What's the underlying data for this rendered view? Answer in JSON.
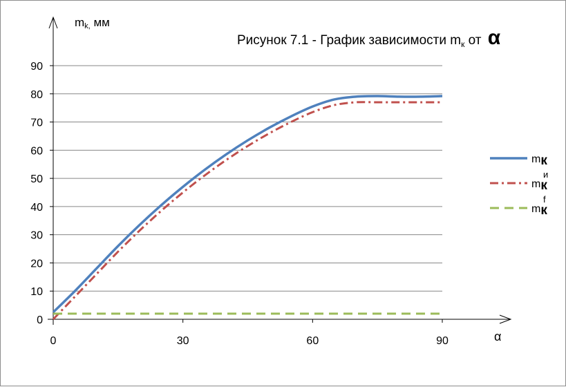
{
  "chart_data": {
    "type": "line",
    "title_prefix": "Рисунок 7.1 - График зависимости m",
    "title_sub": "к",
    "title_mid": " от ",
    "title_symbol": "α",
    "ylabel_main": "m",
    "ylabel_sub": "k,",
    "ylabel_unit": " мм",
    "xlabel": "α",
    "xlim": [
      0,
      90
    ],
    "ylim": [
      0,
      90
    ],
    "xticks": [
      0,
      30,
      60,
      90
    ],
    "yticks": [
      0,
      10,
      20,
      30,
      40,
      50,
      60,
      70,
      80,
      90
    ],
    "grid": true,
    "legend_position": "right",
    "series": [
      {
        "name_main": "m",
        "name_sub": "к",
        "name_sup": "",
        "color": "#4f81bd",
        "style": "solid",
        "x": [
          0,
          5,
          10,
          15,
          20,
          25,
          30,
          35,
          40,
          45,
          50,
          55,
          60,
          65,
          70,
          75,
          80,
          85,
          90
        ],
        "y": [
          2.5,
          10,
          18,
          26,
          33.5,
          40.5,
          47,
          53,
          58.5,
          63.5,
          68,
          72,
          75.5,
          78,
          79,
          79.2,
          79,
          79,
          79.2
        ]
      },
      {
        "name_main": "m",
        "name_sub": "к",
        "name_sup": "и",
        "color": "#c0504d",
        "style": "dashdot",
        "x": [
          0,
          5,
          10,
          15,
          20,
          25,
          30,
          35,
          40,
          45,
          50,
          55,
          60,
          65,
          70,
          75,
          80,
          85,
          90
        ],
        "y": [
          0,
          8,
          16,
          24,
          31.5,
          38.5,
          45,
          51,
          56.5,
          61.5,
          66,
          70,
          73.5,
          76,
          77,
          77,
          77,
          77,
          77
        ]
      },
      {
        "name_main": "m",
        "name_sub": "к",
        "name_sup": "f",
        "color": "#9bbb59",
        "style": "dashed",
        "x": [
          0,
          90
        ],
        "y": [
          2,
          2
        ]
      }
    ]
  }
}
